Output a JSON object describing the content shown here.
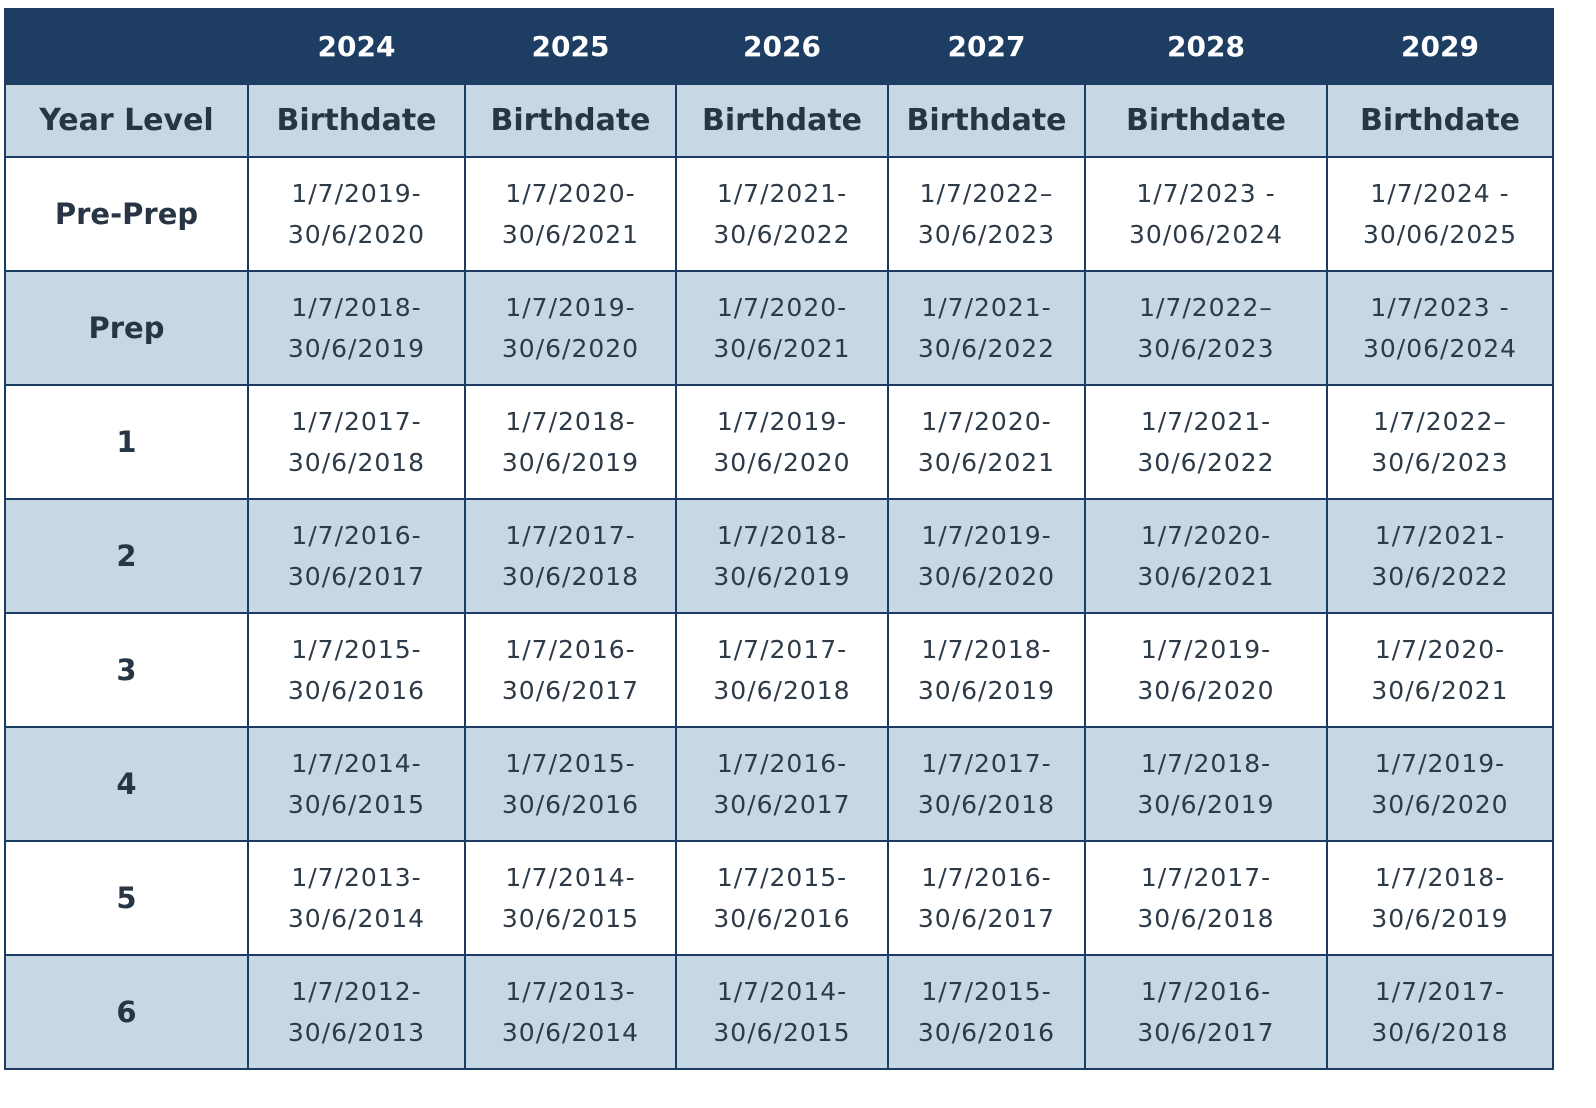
{
  "header": {
    "corner": "",
    "years": [
      "2024",
      "2025",
      "2026",
      "2027",
      "2028",
      "2029"
    ]
  },
  "subheader": {
    "first": "Year Level",
    "col_label": "Birthdate"
  },
  "rows": [
    {
      "level": "Pre-Prep",
      "ranges": [
        [
          "1/7/2019-",
          "30/6/2020"
        ],
        [
          "1/7/2020-",
          "30/6/2021"
        ],
        [
          "1/7/2021-",
          "30/6/2022"
        ],
        [
          "1/7/2022–",
          "30/6/2023"
        ],
        [
          "1/7/2023 -",
          "30/06/2024"
        ],
        [
          "1/7/2024 -",
          "30/06/2025"
        ]
      ]
    },
    {
      "level": "Prep",
      "ranges": [
        [
          "1/7/2018-",
          "30/6/2019"
        ],
        [
          "1/7/2019-",
          "30/6/2020"
        ],
        [
          "1/7/2020-",
          "30/6/2021"
        ],
        [
          "1/7/2021-",
          "30/6/2022"
        ],
        [
          "1/7/2022–",
          "30/6/2023"
        ],
        [
          "1/7/2023 -",
          "30/06/2024"
        ]
      ]
    },
    {
      "level": "1",
      "ranges": [
        [
          "1/7/2017-",
          "30/6/2018"
        ],
        [
          "1/7/2018-",
          "30/6/2019"
        ],
        [
          "1/7/2019-",
          "30/6/2020"
        ],
        [
          "1/7/2020-",
          "30/6/2021"
        ],
        [
          "1/7/2021-",
          "30/6/2022"
        ],
        [
          "1/7/2022–",
          "30/6/2023"
        ]
      ]
    },
    {
      "level": "2",
      "ranges": [
        [
          "1/7/2016-",
          "30/6/2017"
        ],
        [
          "1/7/2017-",
          "30/6/2018"
        ],
        [
          "1/7/2018-",
          "30/6/2019"
        ],
        [
          "1/7/2019-",
          "30/6/2020"
        ],
        [
          "1/7/2020-",
          "30/6/2021"
        ],
        [
          "1/7/2021-",
          "30/6/2022"
        ]
      ]
    },
    {
      "level": "3",
      "ranges": [
        [
          "1/7/2015-",
          "30/6/2016"
        ],
        [
          "1/7/2016-",
          "30/6/2017"
        ],
        [
          "1/7/2017-",
          "30/6/2018"
        ],
        [
          "1/7/2018-",
          "30/6/2019"
        ],
        [
          "1/7/2019-",
          "30/6/2020"
        ],
        [
          "1/7/2020-",
          "30/6/2021"
        ]
      ]
    },
    {
      "level": "4",
      "ranges": [
        [
          "1/7/2014-",
          "30/6/2015"
        ],
        [
          "1/7/2015-",
          "30/6/2016"
        ],
        [
          "1/7/2016-",
          "30/6/2017"
        ],
        [
          "1/7/2017-",
          "30/6/2018"
        ],
        [
          "1/7/2018-",
          "30/6/2019"
        ],
        [
          "1/7/2019-",
          "30/6/2020"
        ]
      ]
    },
    {
      "level": "5",
      "ranges": [
        [
          "1/7/2013-",
          "30/6/2014"
        ],
        [
          "1/7/2014-",
          "30/6/2015"
        ],
        [
          "1/7/2015-",
          "30/6/2016"
        ],
        [
          "1/7/2016-",
          "30/6/2017"
        ],
        [
          "1/7/2017-",
          "30/6/2018"
        ],
        [
          "1/7/2018-",
          "30/6/2019"
        ]
      ]
    },
    {
      "level": "6",
      "ranges": [
        [
          "1/7/2012-",
          "30/6/2013"
        ],
        [
          "1/7/2013-",
          "30/6/2014"
        ],
        [
          "1/7/2014-",
          "30/6/2015"
        ],
        [
          "1/7/2015-",
          "30/6/2016"
        ],
        [
          "1/7/2016-",
          "30/6/2017"
        ],
        [
          "1/7/2017-",
          "30/6/2018"
        ]
      ]
    }
  ],
  "colors": {
    "header_bg": "#1d3d62",
    "shade_bg": "#c7d7e3",
    "border": "#1b3d63"
  }
}
